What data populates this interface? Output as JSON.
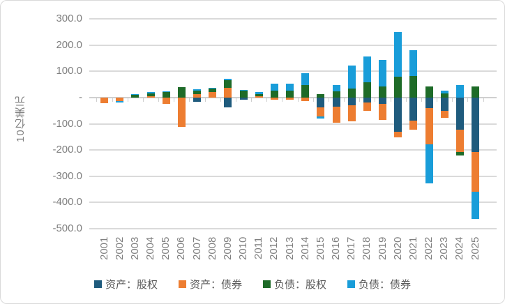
{
  "chart": {
    "ylabel": "10亿美元"
  },
  "chart_data": {
    "type": "bar",
    "stacked": true,
    "title": "",
    "xlabel": "",
    "ylabel": "10亿美元",
    "ylim": [
      -500,
      300
    ],
    "grid": true,
    "legend_position": "bottom",
    "y_tick_values": [
      300,
      200,
      100,
      0,
      -100,
      -200,
      -300,
      -400,
      -500
    ],
    "y_tick_labels": [
      "300.0",
      "200.0",
      "100.0",
      "-",
      "-100.0",
      "-200.0",
      "-300.0",
      "-400.0",
      "-500.0"
    ],
    "categories": [
      "2001",
      "2002",
      "2003",
      "2004",
      "2005",
      "2006",
      "2007",
      "2008",
      "2009",
      "2010",
      "2011",
      "2012",
      "2013",
      "2014",
      "2015",
      "2016",
      "2017",
      "2018",
      "2019",
      "2020",
      "2021",
      "2022",
      "2023",
      "2024",
      "2025"
    ],
    "series": [
      {
        "name": "资产：股权",
        "color": "#1F5B7D",
        "values": [
          0,
          0,
          0,
          0,
          0,
          0,
          -16,
          0,
          -38,
          -9,
          0,
          0,
          0,
          0,
          -38,
          -34,
          -30,
          -18,
          -23,
          -130,
          -88,
          -41,
          -51,
          -122,
          -207
        ]
      },
      {
        "name": "资产：债券",
        "color": "#ED7D31",
        "values": [
          -21,
          -14,
          0,
          4,
          -24,
          -112,
          13,
          22,
          38,
          0,
          6,
          -9,
          -8,
          -12,
          -33,
          -63,
          -61,
          -33,
          -63,
          -22,
          -34,
          -137,
          -25,
          -85,
          -152
        ]
      },
      {
        "name": "负债：股权",
        "color": "#1E6B28",
        "values": [
          0,
          0,
          10,
          12,
          20,
          39,
          14,
          12,
          29,
          26,
          8,
          26,
          27,
          48,
          13,
          23,
          35,
          58,
          43,
          80,
          82,
          42,
          16,
          -15,
          42
        ]
      },
      {
        "name": "负债：债券",
        "color": "#199DD9",
        "values": [
          0,
          -5,
          4,
          4,
          4,
          0,
          4,
          4,
          4,
          4,
          7,
          27,
          27,
          44,
          -9,
          24,
          87,
          98,
          102,
          171,
          99,
          -150,
          11,
          47,
          -104
        ]
      }
    ]
  }
}
